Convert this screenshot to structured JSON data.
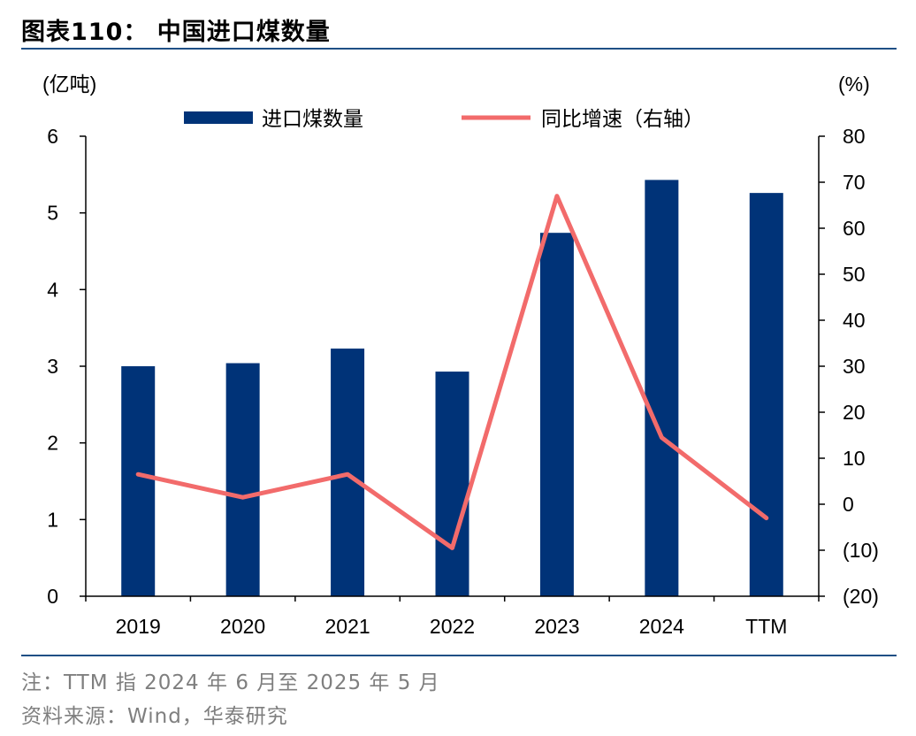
{
  "figure": {
    "title": "图表110： 中国进口煤数量",
    "note": "注：TTM 指 2024 年 6 月至 2025 年 5 月",
    "source": "资料来源：Wind，华泰研究"
  },
  "chart_data": {
    "type": "bar",
    "categories": [
      "2019",
      "2020",
      "2021",
      "2022",
      "2023",
      "2024",
      "TTM"
    ],
    "series": [
      {
        "name": "进口煤数量",
        "type": "bar",
        "axis": "left",
        "color": "#003378",
        "values": [
          3.0,
          3.04,
          3.23,
          2.93,
          4.74,
          5.43,
          5.26
        ]
      },
      {
        "name": "同比增速（右轴）",
        "type": "line",
        "axis": "right",
        "color": "#f26b6b",
        "values": [
          6.5,
          1.5,
          6.5,
          -9.5,
          67,
          14.5,
          -3
        ]
      }
    ],
    "left_axis": {
      "label": "(亿吨)",
      "range": [
        0,
        6
      ],
      "ticks": [
        "0",
        "1",
        "2",
        "3",
        "4",
        "5",
        "6"
      ]
    },
    "right_axis": {
      "label": "(%)",
      "range": [
        -20,
        80
      ],
      "ticks": [
        "(20)",
        "(10)",
        "0",
        "10",
        "20",
        "30",
        "40",
        "50",
        "60",
        "70",
        "80"
      ]
    },
    "legend": "top-center",
    "grid": false
  }
}
